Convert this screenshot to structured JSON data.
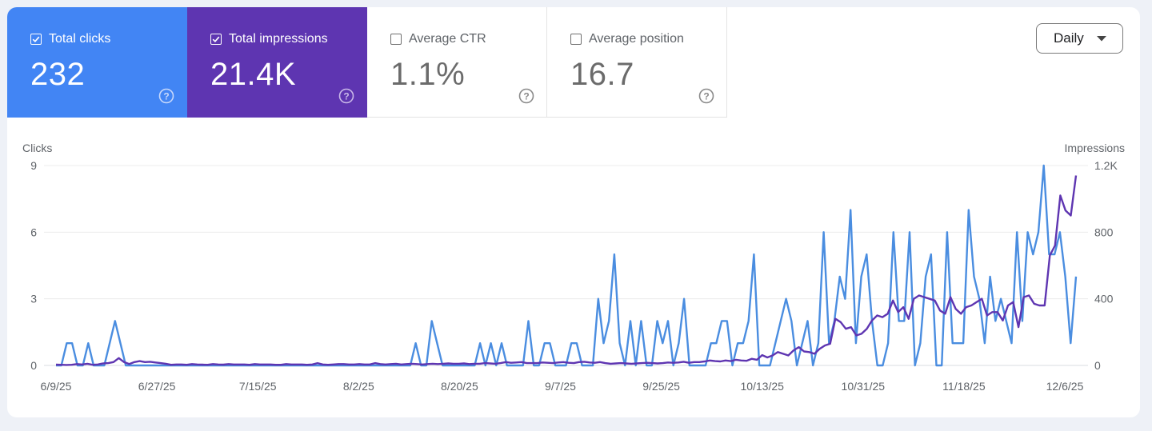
{
  "metrics": [
    {
      "label": "Total clicks",
      "value": "232",
      "checked": true,
      "color": "#4285f4"
    },
    {
      "label": "Total impressions",
      "value": "21.4K",
      "checked": true,
      "color": "#5e35b1"
    },
    {
      "label": "Average CTR",
      "value": "1.1%",
      "checked": false
    },
    {
      "label": "Average position",
      "value": "16.7",
      "checked": false
    }
  ],
  "dropdown": {
    "label": "Daily"
  },
  "chart_data": {
    "type": "line",
    "left_axis": {
      "title": "Clicks",
      "ticks": [
        "0",
        "3",
        "6",
        "9"
      ],
      "ylim": [
        0,
        9
      ]
    },
    "right_axis": {
      "title": "Impressions",
      "ticks": [
        "0",
        "400",
        "800",
        "1.2K"
      ],
      "ylim": [
        0,
        1200
      ]
    },
    "x_tick_labels": [
      "6/9/25",
      "6/27/25",
      "7/15/25",
      "8/2/25",
      "8/20/25",
      "9/7/25",
      "9/25/25",
      "10/13/25",
      "10/31/25",
      "11/18/25",
      "12/6/25"
    ],
    "x_range": [
      "6/9/25",
      "12/7/25"
    ],
    "grid": true,
    "series": [
      {
        "name": "Clicks",
        "axis": "left",
        "color": "#4a8de0",
        "values": [
          0,
          0,
          1,
          1,
          0,
          0,
          1,
          0,
          0,
          0,
          1,
          2,
          1,
          0,
          0,
          0,
          0,
          0,
          0,
          0,
          0,
          0,
          0,
          0,
          0,
          0,
          0,
          0,
          0,
          0,
          0,
          0,
          0,
          0,
          0,
          0,
          0,
          0,
          0,
          0,
          0,
          0,
          0,
          0,
          0,
          0,
          0,
          0,
          0,
          0,
          0,
          0,
          0,
          0,
          0,
          0,
          0,
          0,
          0,
          0,
          0,
          0,
          0,
          0,
          0,
          0,
          0,
          1,
          0,
          0,
          2,
          1,
          0,
          0,
          0,
          0,
          0,
          0,
          0,
          1,
          0,
          1,
          0,
          1,
          0,
          0,
          0,
          0,
          2,
          0,
          0,
          1,
          1,
          0,
          0,
          0,
          1,
          1,
          0,
          0,
          0,
          3,
          1,
          2,
          5,
          1,
          0,
          2,
          0,
          2,
          0,
          0,
          2,
          1,
          2,
          0,
          1,
          3,
          0,
          0,
          0,
          0,
          1,
          1,
          2,
          2,
          0,
          1,
          1,
          2,
          5,
          0,
          0,
          0,
          1,
          2,
          3,
          2,
          0,
          1,
          2,
          0,
          1,
          6,
          1,
          2,
          4,
          3,
          7,
          1,
          4,
          5,
          2,
          0,
          0,
          1,
          6,
          2,
          2,
          6,
          0,
          1,
          4,
          5,
          0,
          0,
          6,
          1,
          1,
          1,
          7,
          4,
          3,
          1,
          4,
          2,
          3,
          2,
          1,
          6,
          2,
          6,
          5,
          6,
          9,
          5,
          5,
          6,
          4,
          1,
          4
        ]
      },
      {
        "name": "Impressions",
        "axis": "right",
        "color": "#5e35b1",
        "values": [
          5,
          4,
          3,
          4,
          8,
          6,
          10,
          4,
          6,
          12,
          14,
          20,
          44,
          20,
          8,
          20,
          26,
          20,
          22,
          18,
          14,
          10,
          4,
          6,
          6,
          4,
          8,
          6,
          5,
          4,
          8,
          6,
          5,
          8,
          6,
          6,
          6,
          4,
          8,
          6,
          6,
          6,
          4,
          4,
          8,
          6,
          6,
          6,
          4,
          6,
          14,
          6,
          4,
          6,
          8,
          8,
          6,
          6,
          8,
          6,
          6,
          14,
          8,
          6,
          8,
          10,
          6,
          8,
          10,
          8,
          6,
          8,
          10,
          8,
          10,
          12,
          10,
          10,
          12,
          8,
          10,
          10,
          14,
          12,
          10,
          14,
          20,
          16,
          18,
          20,
          14,
          14,
          14,
          18,
          16,
          14,
          18,
          20,
          16,
          14,
          20,
          22,
          18,
          16,
          20,
          14,
          10,
          12,
          14,
          12,
          10,
          12,
          14,
          16,
          14,
          12,
          14,
          18,
          16,
          18,
          22,
          16,
          20,
          20,
          24,
          30,
          26,
          24,
          30,
          26,
          34,
          30,
          28,
          40,
          34,
          62,
          48,
          60,
          80,
          70,
          60,
          90,
          110,
          84,
          80,
          70,
          100,
          120,
          130,
          280,
          260,
          220,
          230,
          180,
          190,
          220,
          270,
          300,
          290,
          310,
          390,
          320,
          350,
          280,
          400,
          420,
          410,
          400,
          390,
          330,
          310,
          410,
          340,
          310,
          350,
          360,
          380,
          400,
          300,
          320,
          320,
          270,
          360,
          380,
          230,
          410,
          420,
          370,
          360,
          360,
          660,
          720,
          1020,
          930,
          900,
          1140
        ]
      }
    ]
  }
}
